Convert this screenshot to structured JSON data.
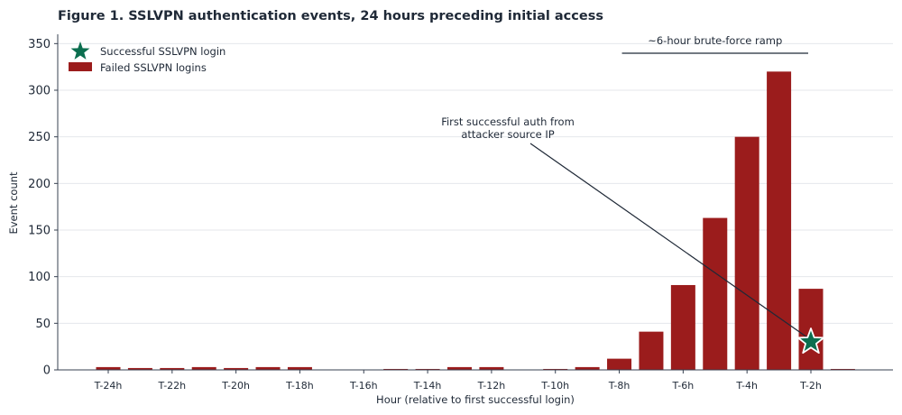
{
  "chart_data": {
    "type": "bar",
    "title": "Figure 1.  SSLVPN authentication events, 24 hours preceding initial access",
    "xlabel": "Hour (relative to first successful login)",
    "ylabel": "Event count",
    "ylim": [
      0,
      360
    ],
    "yticks": [
      0,
      50,
      100,
      150,
      200,
      250,
      300,
      350
    ],
    "grid": true,
    "legend_position": "top-left",
    "x": [
      -24,
      -23,
      -22,
      -21,
      -20,
      -19,
      -18,
      -17,
      -16,
      -15,
      -14,
      -13,
      -12,
      -11,
      -10,
      -9,
      -8,
      -7,
      -6,
      -5,
      -4,
      -3,
      -2,
      -1
    ],
    "xticks": [
      {
        "x": -24,
        "label": "T-24h"
      },
      {
        "x": -22,
        "label": "T-22h"
      },
      {
        "x": -20,
        "label": "T-20h"
      },
      {
        "x": -18,
        "label": "T-18h"
      },
      {
        "x": -16,
        "label": "T-16h"
      },
      {
        "x": -14,
        "label": "T-14h"
      },
      {
        "x": -12,
        "label": "T-12h"
      },
      {
        "x": -10,
        "label": "T-10h"
      },
      {
        "x": -8,
        "label": "T-8h"
      },
      {
        "x": -6,
        "label": "T-6h"
      },
      {
        "x": -4,
        "label": "T-4h"
      },
      {
        "x": -2,
        "label": "T-2h"
      }
    ],
    "series": [
      {
        "name": "Failed SSLVPN logins",
        "type": "bar",
        "color": "#9b1c1c",
        "values": [
          3,
          2,
          2,
          3,
          2,
          3,
          3,
          0,
          0,
          1,
          1,
          3,
          3,
          0,
          1,
          3,
          12,
          41,
          91,
          163,
          250,
          320,
          87,
          1
        ]
      },
      {
        "name": "Successful SSLVPN login",
        "type": "scatter",
        "marker": "star",
        "color": "#0b6e4f",
        "points": [
          {
            "x": -2,
            "y": 30
          }
        ]
      }
    ],
    "annotations": [
      {
        "id": "first-auth",
        "text_lines": [
          "First successful auth from",
          "attacker source IP"
        ],
        "target": {
          "x": -2,
          "y": 30
        },
        "text_at": {
          "x": -10.5,
          "y": 262
        }
      },
      {
        "id": "ramp",
        "text": "~6-hour brute-force ramp",
        "x_start": -8,
        "x_end": -2,
        "y": 340
      }
    ]
  }
}
